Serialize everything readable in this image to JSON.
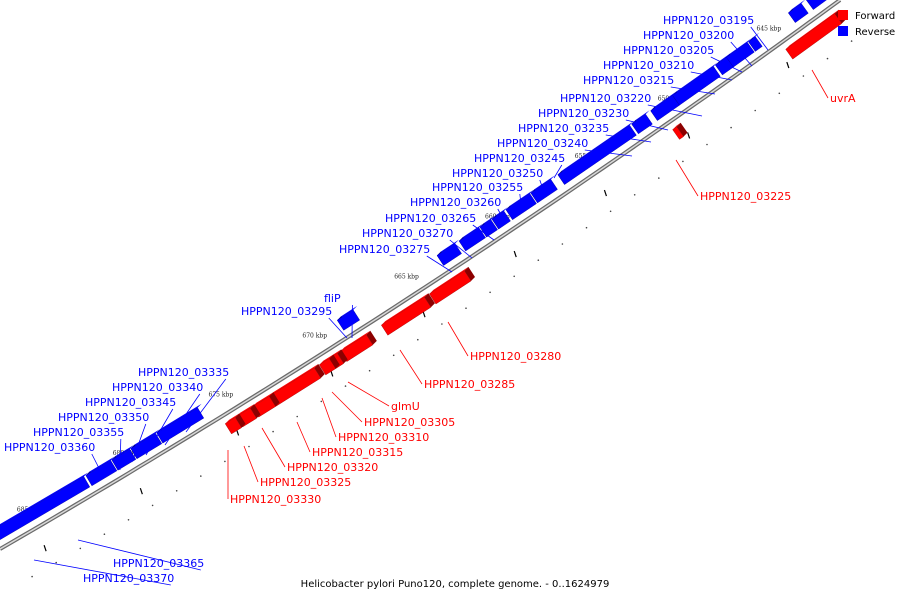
{
  "legend": [
    {
      "label": "Forward",
      "color": "#ff0000"
    },
    {
      "label": "Reverse",
      "color": "#0000ff"
    }
  ],
  "caption": "Helicobacter pylori Puno120, complete genome. - 0..1624979",
  "colors": {
    "forward": "#ff0000",
    "reverse": "#0000ff",
    "backbone": "#888888"
  },
  "ticks": [
    "645 kbp",
    "650 kbp",
    "655 kbp",
    "660 kbp",
    "665 kbp",
    "670 kbp",
    "675 kbp",
    "680 kbp",
    "685 kbp"
  ],
  "reverse_labels": [
    "HPPN120_03195",
    "HPPN120_03200",
    "HPPN120_03205",
    "HPPN120_03210",
    "HPPN120_03215",
    "HPPN120_03220",
    "HPPN120_03230",
    "HPPN120_03235",
    "HPPN120_03240",
    "HPPN120_03245",
    "HPPN120_03250",
    "HPPN120_03255",
    "HPPN120_03260",
    "HPPN120_03265",
    "HPPN120_03270",
    "HPPN120_03275",
    "fliP",
    "HPPN120_03295",
    "HPPN120_03335",
    "HPPN120_03340",
    "HPPN120_03345",
    "HPPN120_03350",
    "HPPN120_03355",
    "HPPN120_03360",
    "HPPN120_03365",
    "HPPN120_03370"
  ],
  "forward_labels": [
    "uvrA",
    "HPPN120_03225",
    "HPPN120_03280",
    "HPPN120_03285",
    "glmU",
    "HPPN120_03305",
    "HPPN120_03310",
    "HPPN120_03315",
    "HPPN120_03320",
    "HPPN120_03325",
    "HPPN120_03330"
  ]
}
